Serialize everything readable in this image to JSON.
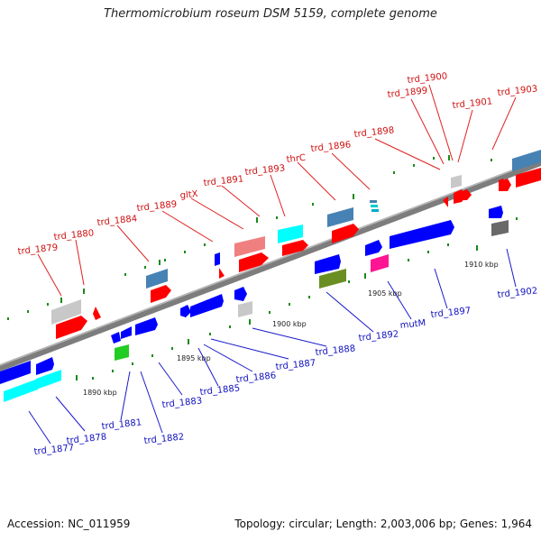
{
  "header": {
    "title": "Thermomicrobium roseum DSM 5159, complete genome"
  },
  "footer": {
    "accession": "Accession: NC_011959",
    "stats": "Topology: circular; Length: 2,003,006 bp; Genes: 1,964"
  },
  "scale_labels": [
    "1890 kbp",
    "1895 kbp",
    "1900 kbp",
    "1905 kbp",
    "1910 kbp"
  ],
  "colors": {
    "backbone": "#808080",
    "forward_label": "#d01010",
    "reverse_label": "#1010c0",
    "tick": "#1a8a1a"
  },
  "forward_genes": [
    {
      "id": "trd_1879",
      "color": "#ff0000"
    },
    {
      "id": "trd_1880",
      "color": "#ff0000"
    },
    {
      "id": "trd_1884",
      "color": "#4682b4"
    },
    {
      "id": "trd_1889",
      "color": "#ff0000"
    },
    {
      "id": "gltX",
      "color": "#ff0000"
    },
    {
      "id": "trd_1891",
      "color": "#f08080"
    },
    {
      "id": "trd_1893",
      "color": "#00ffff"
    },
    {
      "id": "thrC",
      "color": "#4682b4"
    },
    {
      "id": "trd_1896",
      "color": "#00ffff"
    },
    {
      "id": "trd_1898",
      "color": "#c0c0c0"
    },
    {
      "id": "trd_1899",
      "color": "#ff0000"
    },
    {
      "id": "trd_1900",
      "color": "#ff0000"
    },
    {
      "id": "trd_1901",
      "color": "#ff0000"
    },
    {
      "id": "trd_1903",
      "color": "#4682b4"
    }
  ],
  "reverse_genes": [
    {
      "id": "trd_1877",
      "color": "#00ffff"
    },
    {
      "id": "trd_1878",
      "color": "#00ffff"
    },
    {
      "id": "trd_1881",
      "color": "#00cc00"
    },
    {
      "id": "trd_1882",
      "color": "#0000ff"
    },
    {
      "id": "trd_1883",
      "color": "#0000ff"
    },
    {
      "id": "trd_1885",
      "color": "#0000ff"
    },
    {
      "id": "trd_1886",
      "color": "#0000ff"
    },
    {
      "id": "trd_1887",
      "color": "#0000ff"
    },
    {
      "id": "trd_1888",
      "color": "#c0c0c0"
    },
    {
      "id": "trd_1892",
      "color": "#6b8e23"
    },
    {
      "id": "mutM",
      "color": "#ff1493"
    },
    {
      "id": "trd_1897",
      "color": "#0000ff"
    },
    {
      "id": "trd_1902",
      "color": "#696969"
    }
  ]
}
